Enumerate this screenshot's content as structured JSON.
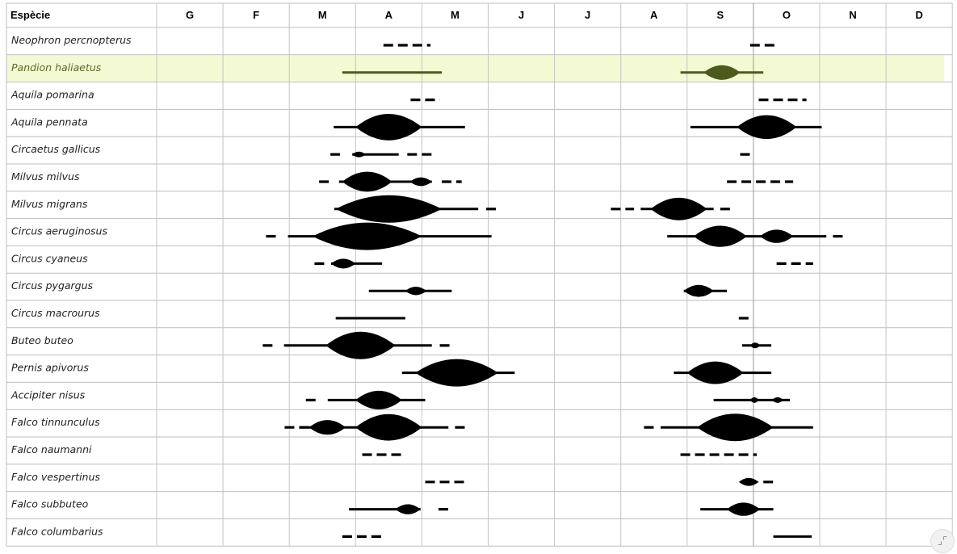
{
  "chart_data": {
    "type": "table",
    "header": "Espècie",
    "months": [
      "G",
      "F",
      "M",
      "A",
      "M",
      "J",
      "J",
      "A",
      "S",
      "O",
      "N",
      "D"
    ],
    "highlight_color": "#f3f9d2",
    "highlight_line_color": "#4d5a1e",
    "series": [
      {
        "name": "Neophron percnopterus",
        "marks": [
          {
            "kind": "dash",
            "from": 3.42,
            "to": 4.13
          },
          {
            "kind": "dash",
            "from": 8.95,
            "to": 9.36
          }
        ]
      },
      {
        "name": "Pandion haliaetus",
        "highlight": true,
        "marks": [
          {
            "kind": "line",
            "from": 2.8,
            "to": 4.3
          },
          {
            "kind": "line",
            "from": 7.9,
            "to": 9.15
          },
          {
            "kind": "bulge",
            "from": 8.25,
            "to": 8.8
          }
        ]
      },
      {
        "name": "Aquila pomarina",
        "marks": [
          {
            "kind": "dash",
            "from": 3.83,
            "to": 4.27
          },
          {
            "kind": "dash",
            "from": 9.08,
            "to": 9.8
          }
        ]
      },
      {
        "name": "Aquila pennata",
        "marks": [
          {
            "kind": "line",
            "from": 2.67,
            "to": 4.65
          },
          {
            "kind": "bulge",
            "from": 3.0,
            "to": 4.0
          },
          {
            "kind": "line",
            "from": 8.05,
            "to": 10.03
          },
          {
            "kind": "bulge",
            "from": 8.75,
            "to": 9.65
          }
        ]
      },
      {
        "name": "Circaetus gallicus",
        "marks": [
          {
            "kind": "dash",
            "from": 2.62,
            "to": 2.82
          },
          {
            "kind": "line",
            "from": 2.95,
            "to": 3.65
          },
          {
            "kind": "bulge",
            "from": 2.95,
            "to": 3.15
          },
          {
            "kind": "dash",
            "from": 3.78,
            "to": 4.2
          },
          {
            "kind": "dash",
            "from": 8.8,
            "to": 9.0
          }
        ]
      },
      {
        "name": "Milvus milvus",
        "marks": [
          {
            "kind": "dash",
            "from": 2.45,
            "to": 2.62
          },
          {
            "kind": "line",
            "from": 2.75,
            "to": 4.15
          },
          {
            "kind": "bulge",
            "from": 2.8,
            "to": 3.55
          },
          {
            "kind": "bulge",
            "from": 3.82,
            "to": 4.15
          },
          {
            "kind": "dash",
            "from": 4.3,
            "to": 4.6
          },
          {
            "kind": "dash",
            "from": 8.6,
            "to": 9.6
          }
        ]
      },
      {
        "name": "Milvus migrans",
        "marks": [
          {
            "kind": "line",
            "from": 2.68,
            "to": 4.85
          },
          {
            "kind": "bulge",
            "from": 2.7,
            "to": 4.3
          },
          {
            "kind": "dash",
            "from": 4.97,
            "to": 5.15
          },
          {
            "kind": "dash",
            "from": 6.85,
            "to": 7.2
          },
          {
            "kind": "line",
            "from": 7.3,
            "to": 8.4
          },
          {
            "kind": "bulge",
            "from": 7.45,
            "to": 8.3
          },
          {
            "kind": "dash",
            "from": 8.5,
            "to": 8.65
          }
        ]
      },
      {
        "name": "Circus aeruginosus",
        "marks": [
          {
            "kind": "dash",
            "from": 1.65,
            "to": 1.83
          },
          {
            "kind": "line",
            "from": 1.98,
            "to": 5.05
          },
          {
            "kind": "bulge",
            "from": 2.35,
            "to": 4.0
          },
          {
            "kind": "line",
            "from": 7.7,
            "to": 10.1
          },
          {
            "kind": "bulge",
            "from": 8.1,
            "to": 8.9
          },
          {
            "kind": "bulge",
            "from": 9.1,
            "to": 9.6
          },
          {
            "kind": "dash",
            "from": 10.2,
            "to": 10.35
          }
        ]
      },
      {
        "name": "Circus cyaneus",
        "marks": [
          {
            "kind": "dash",
            "from": 2.38,
            "to": 2.55
          },
          {
            "kind": "line",
            "from": 2.63,
            "to": 3.4
          },
          {
            "kind": "bulge",
            "from": 2.63,
            "to": 3.0
          },
          {
            "kind": "dash",
            "from": 9.35,
            "to": 9.9
          }
        ]
      },
      {
        "name": "Circus pygargus",
        "marks": [
          {
            "kind": "line",
            "from": 3.2,
            "to": 4.45
          },
          {
            "kind": "bulge",
            "from": 3.75,
            "to": 4.07
          },
          {
            "kind": "line",
            "from": 7.95,
            "to": 8.6
          },
          {
            "kind": "bulge",
            "from": 7.95,
            "to": 8.4
          }
        ]
      },
      {
        "name": "Circus macrourus",
        "marks": [
          {
            "kind": "line",
            "from": 2.7,
            "to": 3.75
          },
          {
            "kind": "dash",
            "from": 8.78,
            "to": 8.95
          }
        ]
      },
      {
        "name": "Buteo buteo",
        "marks": [
          {
            "kind": "dash",
            "from": 1.6,
            "to": 1.78
          },
          {
            "kind": "line",
            "from": 1.92,
            "to": 4.15
          },
          {
            "kind": "bulge",
            "from": 2.55,
            "to": 3.6
          },
          {
            "kind": "dash",
            "from": 4.27,
            "to": 4.45
          },
          {
            "kind": "line",
            "from": 8.83,
            "to": 9.27
          },
          {
            "kind": "bulge",
            "from": 8.95,
            "to": 9.1
          }
        ]
      },
      {
        "name": "Pernis apivorus",
        "marks": [
          {
            "kind": "line",
            "from": 3.7,
            "to": 5.4
          },
          {
            "kind": "bulge",
            "from": 3.9,
            "to": 5.15
          },
          {
            "kind": "line",
            "from": 7.8,
            "to": 9.27
          },
          {
            "kind": "bulge",
            "from": 8.0,
            "to": 8.85
          }
        ]
      },
      {
        "name": "Accipiter nisus",
        "marks": [
          {
            "kind": "dash",
            "from": 2.25,
            "to": 2.42
          },
          {
            "kind": "line",
            "from": 2.58,
            "to": 4.05
          },
          {
            "kind": "bulge",
            "from": 3.0,
            "to": 3.7
          },
          {
            "kind": "line",
            "from": 8.4,
            "to": 9.55
          },
          {
            "kind": "bulge",
            "from": 8.95,
            "to": 9.08
          },
          {
            "kind": "bulge",
            "from": 9.28,
            "to": 9.45
          }
        ]
      },
      {
        "name": "Falco tinnunculus",
        "marks": [
          {
            "kind": "dash",
            "from": 1.93,
            "to": 2.3
          },
          {
            "kind": "line",
            "from": 2.15,
            "to": 4.4
          },
          {
            "kind": "bulge",
            "from": 2.3,
            "to": 2.85
          },
          {
            "kind": "bulge",
            "from": 3.0,
            "to": 4.0
          },
          {
            "kind": "dash",
            "from": 4.5,
            "to": 4.65
          },
          {
            "kind": "dash",
            "from": 7.35,
            "to": 7.52
          },
          {
            "kind": "line",
            "from": 7.6,
            "to": 9.9
          },
          {
            "kind": "bulge",
            "from": 8.15,
            "to": 9.3
          }
        ]
      },
      {
        "name": "Falco naumanni",
        "marks": [
          {
            "kind": "dash",
            "from": 3.1,
            "to": 3.7
          },
          {
            "kind": "dash",
            "from": 7.9,
            "to": 9.05
          }
        ]
      },
      {
        "name": "Falco vespertinus",
        "marks": [
          {
            "kind": "dash",
            "from": 4.05,
            "to": 4.65
          },
          {
            "kind": "bulge",
            "from": 8.78,
            "to": 9.08
          },
          {
            "kind": "dash",
            "from": 9.15,
            "to": 9.32
          }
        ]
      },
      {
        "name": "Falco subbuteo",
        "marks": [
          {
            "kind": "line",
            "from": 2.9,
            "to": 3.98
          },
          {
            "kind": "bulge",
            "from": 3.6,
            "to": 3.98
          },
          {
            "kind": "dash",
            "from": 4.25,
            "to": 4.42
          },
          {
            "kind": "line",
            "from": 8.2,
            "to": 9.3
          },
          {
            "kind": "bulge",
            "from": 8.6,
            "to": 9.1
          }
        ]
      },
      {
        "name": "Falco columbarius",
        "marks": [
          {
            "kind": "dash",
            "from": 2.8,
            "to": 3.45
          },
          {
            "kind": "line",
            "from": 9.3,
            "to": 9.88
          }
        ]
      }
    ]
  },
  "controls": {
    "corner_button_icon": "⌟⌜"
  }
}
